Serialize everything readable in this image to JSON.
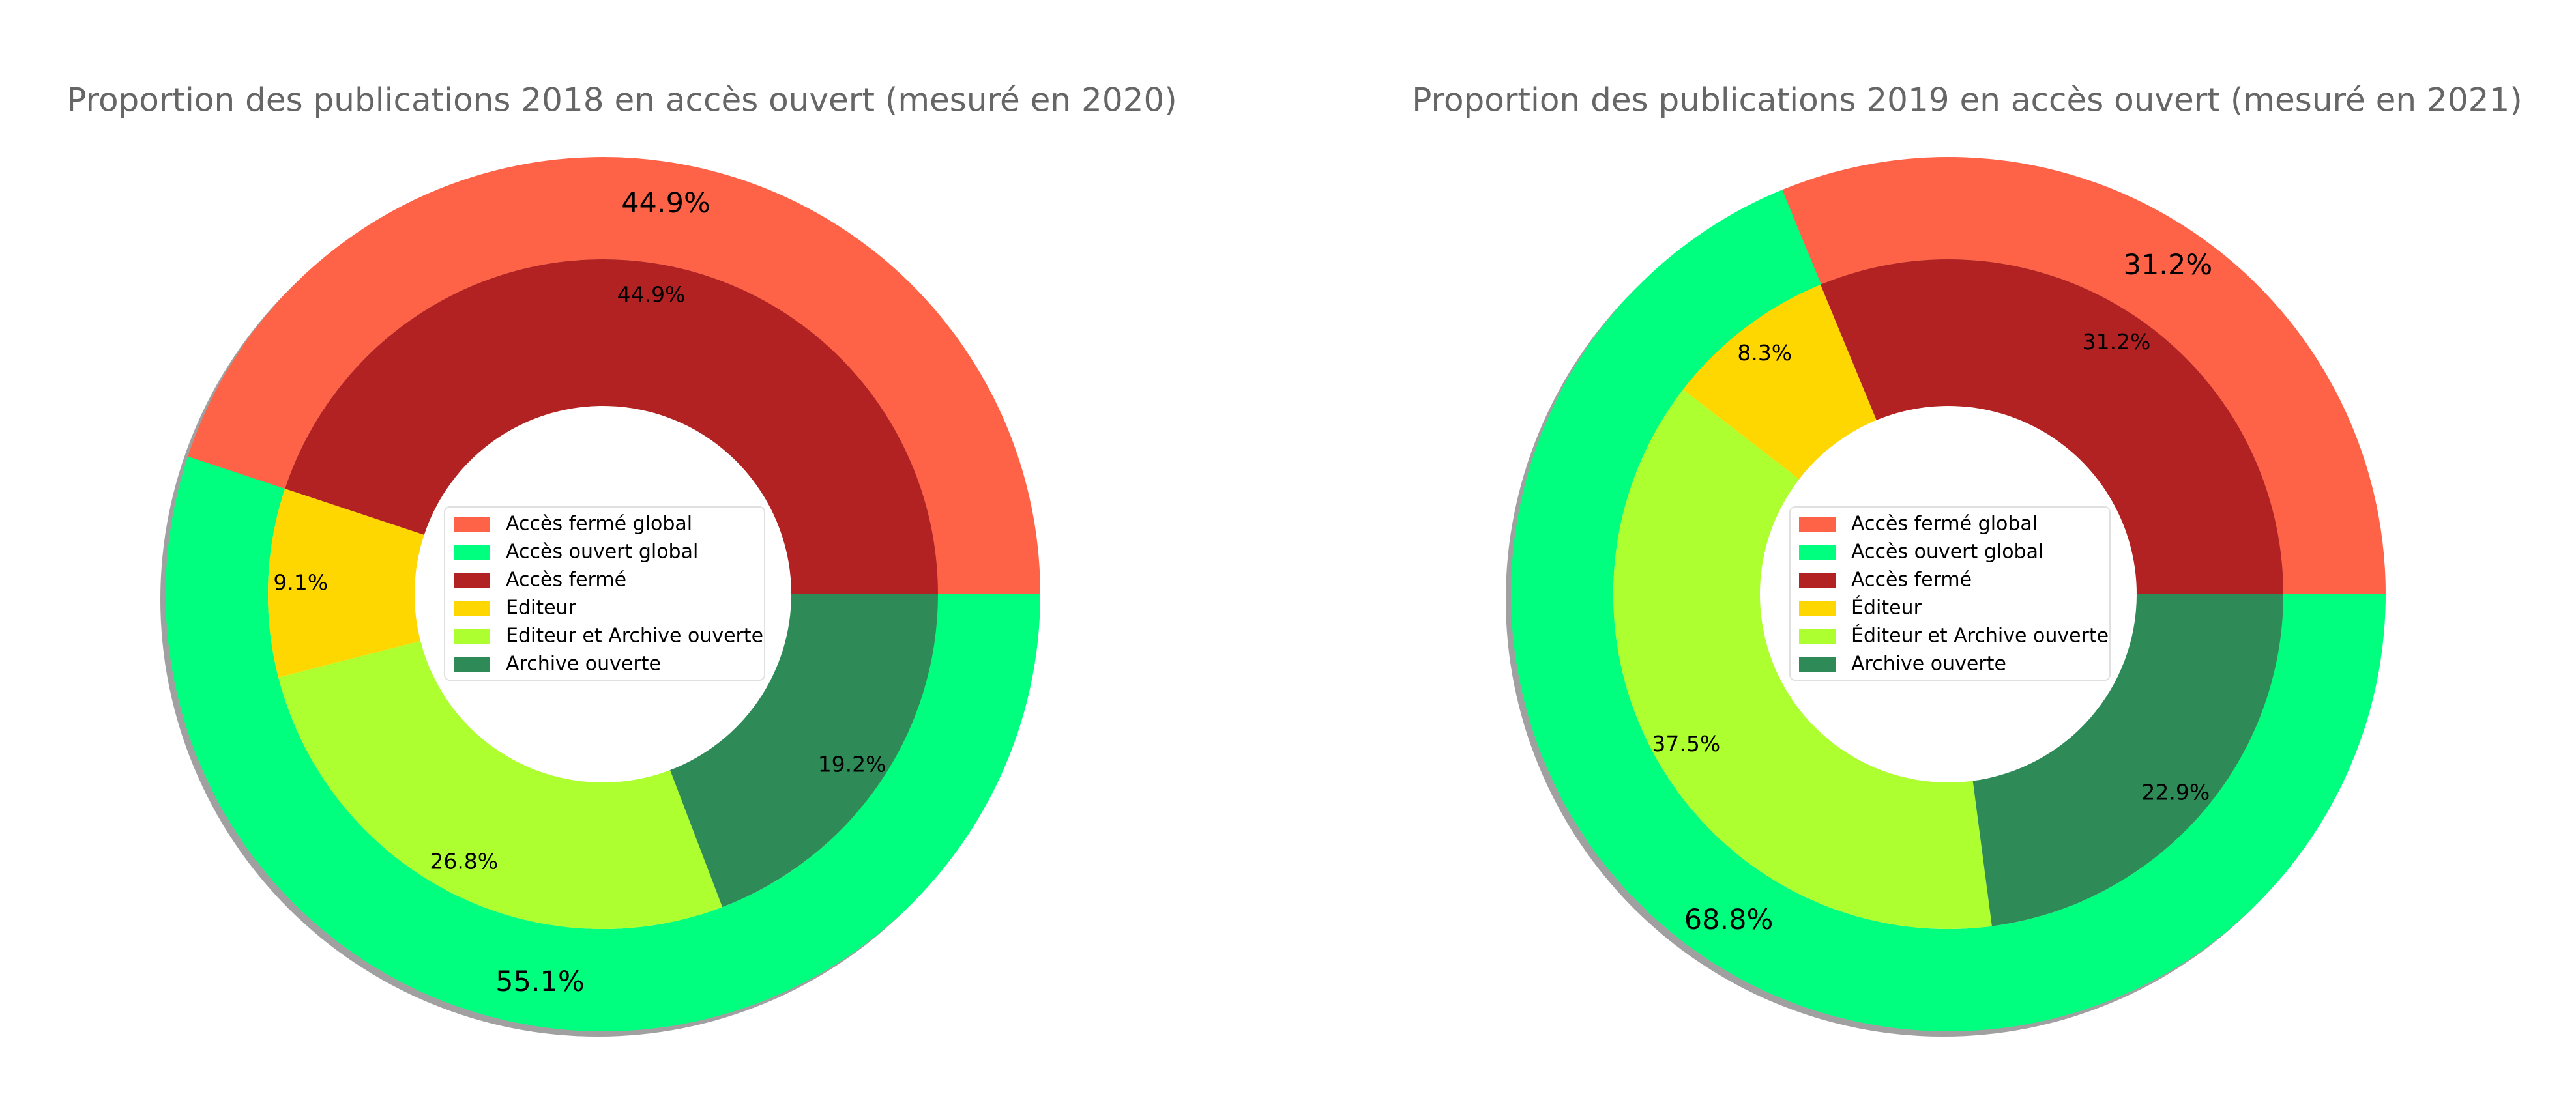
{
  "chart_data": [
    {
      "type": "pie",
      "title": "Proportion des publications 2018 en accès ouvert (mesuré en 2020)",
      "outer": {
        "categories": [
          "Accès fermé global",
          "Accès ouvert global"
        ],
        "colors": [
          "#ff6347",
          "#00ff7f"
        ],
        "values": [
          44.9,
          55.1
        ],
        "value_labels": [
          "44.9%",
          "55.1%"
        ]
      },
      "inner": {
        "categories": [
          "Accès fermé",
          "Editeur",
          "Editeur et Archive ouverte",
          "Archive ouverte"
        ],
        "colors": [
          "#b22222",
          "#ffd700",
          "#adff2f",
          "#2e8b57"
        ],
        "values": [
          44.9,
          9.1,
          26.8,
          19.2
        ],
        "value_labels": [
          "44.9%",
          "9.1%",
          "26.8%",
          "19.2%"
        ]
      }
    },
    {
      "type": "pie",
      "title": "Proportion des publications 2019 en accès ouvert (mesuré en 2021)",
      "outer": {
        "categories": [
          "Accès fermé global",
          "Accès ouvert global"
        ],
        "colors": [
          "#ff6347",
          "#00ff7f"
        ],
        "values": [
          31.2,
          68.8
        ],
        "value_labels": [
          "31.2%",
          "68.8%"
        ]
      },
      "inner": {
        "categories": [
          "Accès fermé",
          "Éditeur",
          "Éditeur et Archive ouverte",
          "Archive ouverte"
        ],
        "colors": [
          "#b22222",
          "#ffd700",
          "#adff2f",
          "#2e8b57"
        ],
        "values": [
          31.2,
          8.3,
          37.5,
          22.9
        ],
        "value_labels": [
          "31.2%",
          "8.3%",
          "37.5%",
          "22.9%"
        ]
      }
    }
  ]
}
